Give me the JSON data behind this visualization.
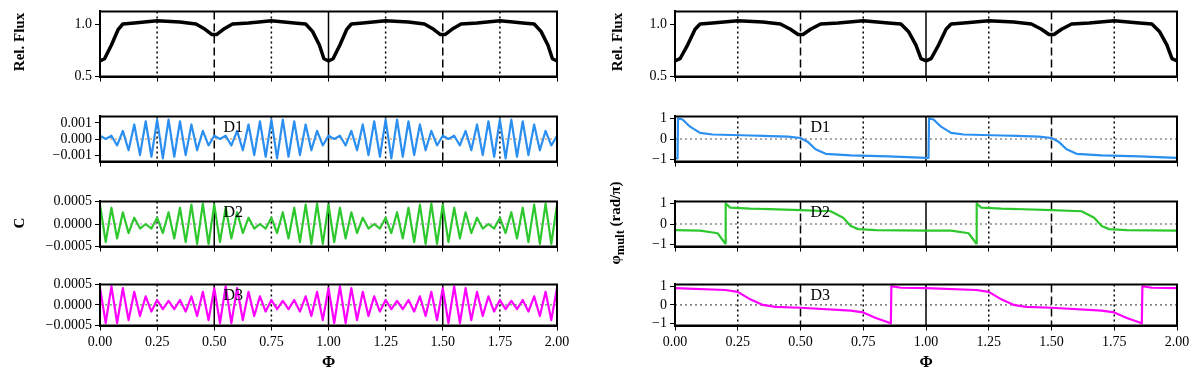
{
  "chart_data": [
    {
      "type": "line",
      "ylabel": "Rel. Flux",
      "xlim": [
        0,
        2
      ],
      "xticks": [
        {
          "value": 0,
          "label": null
        },
        {
          "value": 0.25,
          "label": null
        },
        {
          "value": 0.5,
          "label": null
        },
        {
          "value": 0.75,
          "label": null
        },
        {
          "value": 1,
          "label": null
        },
        {
          "value": 1.25,
          "label": null
        },
        {
          "value": 1.5,
          "label": null
        },
        {
          "value": 1.75,
          "label": null
        },
        {
          "value": 2,
          "label": null
        }
      ],
      "ylim": [
        0.5,
        1.12
      ],
      "yticks": [
        {
          "value": 0.5,
          "label": "0.5"
        },
        {
          "value": 1,
          "label": "1.0"
        }
      ],
      "tick_labels": "y",
      "marker": "none",
      "x": [
        0,
        0.02,
        0.05,
        0.08,
        0.1,
        0.15,
        0.25,
        0.35,
        0.42,
        0.46,
        0.49,
        0.51,
        0.54,
        0.58,
        0.65,
        0.75,
        0.85,
        0.9,
        0.93,
        0.96,
        0.98,
        1,
        1.02,
        1.05,
        1.08,
        1.1,
        1.15,
        1.25,
        1.35,
        1.42,
        1.46,
        1.49,
        1.51,
        1.54,
        1.58,
        1.65,
        1.75,
        1.85,
        1.9,
        1.93,
        1.96,
        1.98,
        2
      ],
      "series": [
        {
          "color": "#000000",
          "values": [
            0.65,
            0.67,
            0.8,
            0.95,
            1.0,
            1.01,
            1.03,
            1.02,
            1.0,
            0.95,
            0.9,
            0.9,
            0.95,
            1.0,
            1.01,
            1.03,
            1.01,
            1.0,
            0.93,
            0.8,
            0.67,
            0.65,
            0.67,
            0.8,
            0.95,
            1.0,
            1.01,
            1.03,
            1.02,
            1.0,
            0.95,
            0.9,
            0.9,
            0.95,
            1.0,
            1.01,
            1.03,
            1.01,
            1.0,
            0.93,
            0.8,
            0.67,
            0.65
          ]
        }
      ],
      "ref_lines": [
        {
          "axis": "x",
          "value": 0.25,
          "line_style": "dotted",
          "color": "#000000"
        },
        {
          "axis": "x",
          "value": 0.5,
          "line_style": "dashed",
          "color": "#000000"
        },
        {
          "axis": "x",
          "value": 0.75,
          "line_style": "dotted",
          "color": "#000000"
        },
        {
          "axis": "x",
          "value": 1,
          "line_style": "solid",
          "color": "#000000"
        },
        {
          "axis": "x",
          "value": 1.25,
          "line_style": "dotted",
          "color": "#000000"
        },
        {
          "axis": "x",
          "value": 1.5,
          "line_style": "dashed",
          "color": "#000000"
        },
        {
          "axis": "x",
          "value": 1.75,
          "line_style": "dotted",
          "color": "#000000"
        }
      ]
    },
    {
      "type": "line",
      "annotations": [
        "D1"
      ],
      "xlim": [
        0,
        2
      ],
      "xticks": [
        {
          "value": 0,
          "label": null
        },
        {
          "value": 0.25,
          "label": null
        },
        {
          "value": 0.5,
          "label": null
        },
        {
          "value": 0.75,
          "label": null
        },
        {
          "value": 1,
          "label": null
        },
        {
          "value": 1.25,
          "label": null
        },
        {
          "value": 1.5,
          "label": null
        },
        {
          "value": 1.75,
          "label": null
        },
        {
          "value": 2,
          "label": null
        }
      ],
      "ylim": [
        -0.0014,
        0.0014
      ],
      "yticks": [
        {
          "value": -0.001,
          "label": "−0.001"
        },
        {
          "value": 0,
          "label": "0.000"
        },
        {
          "value": 0.001,
          "label": "0.001"
        }
      ],
      "tick_labels": "y",
      "marker": "none",
      "x": [
        0,
        0.025,
        0.05,
        0.075,
        0.1,
        0.125,
        0.15,
        0.175,
        0.2,
        0.225,
        0.25,
        0.275,
        0.3,
        0.325,
        0.35,
        0.375,
        0.4,
        0.425,
        0.45,
        0.475,
        0.5,
        0.525,
        0.55,
        0.575,
        0.6,
        0.625,
        0.65,
        0.675,
        0.7,
        0.725,
        0.75,
        0.775,
        0.8,
        0.825,
        0.85,
        0.875,
        0.9,
        0.925,
        0.95,
        0.975,
        1,
        1.025,
        1.05,
        1.075,
        1.1,
        1.125,
        1.15,
        1.175,
        1.2,
        1.225,
        1.25,
        1.275,
        1.3,
        1.325,
        1.35,
        1.375,
        1.4,
        1.425,
        1.45,
        1.475,
        1.5,
        1.525,
        1.55,
        1.575,
        1.6,
        1.625,
        1.65,
        1.675,
        1.7,
        1.725,
        1.75,
        1.775,
        1.8,
        1.825,
        1.85,
        1.875,
        1.9,
        1.925,
        1.95,
        1.975,
        2
      ],
      "series": [
        {
          "color": "#2a8ff0",
          "values": [
            0.0002,
            0,
            0.0002,
            -0.0004,
            0.0005,
            -0.0007,
            0.0009,
            -0.001,
            0.0011,
            -0.0011,
            0.0012,
            -0.0012,
            0.0012,
            -0.0011,
            0.0011,
            -0.001,
            0.0009,
            -0.0007,
            0.0005,
            -0.0004,
            0.0002,
            0,
            0.0002,
            -0.0004,
            0.0005,
            -0.0007,
            0.0009,
            -0.001,
            0.0011,
            -0.0011,
            0.0012,
            -0.0012,
            0.0012,
            -0.0011,
            0.0011,
            -0.001,
            0.0009,
            -0.0007,
            0.0005,
            -0.0004,
            0.0002,
            0,
            0.0002,
            -0.0004,
            0.0005,
            -0.0007,
            0.0009,
            -0.001,
            0.0011,
            -0.0011,
            0.0012,
            -0.0012,
            0.0012,
            -0.0011,
            0.0011,
            -0.001,
            0.0009,
            -0.0007,
            0.0005,
            -0.0004,
            0.0002,
            0,
            0.0002,
            -0.0004,
            0.0005,
            -0.0007,
            0.0009,
            -0.001,
            0.0011,
            -0.0011,
            0.0012,
            -0.0012,
            0.0012,
            -0.0011,
            0.0011,
            -0.001,
            0.0009,
            -0.0007,
            0.0005,
            -0.0004,
            0.0002
          ]
        }
      ],
      "ref_lines": [
        {
          "axis": "y",
          "value": 0,
          "line_style": "dotted",
          "color": "#c8843c"
        },
        {
          "axis": "x",
          "value": 0.25,
          "line_style": "dotted",
          "color": "#000000"
        },
        {
          "axis": "x",
          "value": 0.5,
          "line_style": "dashed",
          "color": "#000000"
        },
        {
          "axis": "x",
          "value": 0.75,
          "line_style": "dotted",
          "color": "#000000"
        },
        {
          "axis": "x",
          "value": 1,
          "line_style": "solid",
          "color": "#000000"
        },
        {
          "axis": "x",
          "value": 1.25,
          "line_style": "dotted",
          "color": "#000000"
        },
        {
          "axis": "x",
          "value": 1.5,
          "line_style": "dashed",
          "color": "#000000"
        },
        {
          "axis": "x",
          "value": 1.75,
          "line_style": "dotted",
          "color": "#000000"
        }
      ]
    },
    {
      "type": "line",
      "ylabel": "C",
      "annotations": [
        "D2"
      ],
      "xlim": [
        0,
        2
      ],
      "xticks": [
        {
          "value": 0,
          "label": null
        },
        {
          "value": 0.25,
          "label": null
        },
        {
          "value": 0.5,
          "label": null
        },
        {
          "value": 0.75,
          "label": null
        },
        {
          "value": 1,
          "label": null
        },
        {
          "value": 1.25,
          "label": null
        },
        {
          "value": 1.5,
          "label": null
        },
        {
          "value": 1.75,
          "label": null
        },
        {
          "value": 2,
          "label": null
        }
      ],
      "ylim": [
        -0.0005,
        0.0005
      ],
      "yticks": [
        {
          "value": -0.0005,
          "label": "−0.0005"
        },
        {
          "value": 0,
          "label": "0.0000"
        },
        {
          "value": 0.0005,
          "label": "0.0005"
        }
      ],
      "tick_labels": "y",
      "marker": "none",
      "x": [
        0,
        0.025,
        0.05,
        0.075,
        0.1,
        0.125,
        0.15,
        0.175,
        0.2,
        0.225,
        0.25,
        0.275,
        0.3,
        0.325,
        0.35,
        0.375,
        0.4,
        0.425,
        0.45,
        0.475,
        0.5,
        0.525,
        0.55,
        0.575,
        0.6,
        0.625,
        0.65,
        0.675,
        0.7,
        0.725,
        0.75,
        0.775,
        0.8,
        0.825,
        0.85,
        0.875,
        0.9,
        0.925,
        0.95,
        0.975,
        1,
        1.025,
        1.05,
        1.075,
        1.1,
        1.125,
        1.15,
        1.175,
        1.2,
        1.225,
        1.25,
        1.275,
        1.3,
        1.325,
        1.35,
        1.375,
        1.4,
        1.425,
        1.45,
        1.475,
        1.5,
        1.525,
        1.55,
        1.575,
        1.6,
        1.625,
        1.65,
        1.675,
        1.7,
        1.725,
        1.75,
        1.775,
        1.8,
        1.825,
        1.85,
        1.875,
        1.9,
        1.925,
        1.95,
        1.975,
        2
      ],
      "series": [
        {
          "color": "#2ec82e",
          "values": [
            0.00043,
            -0.0004,
            0.00036,
            -0.00032,
            0.00026,
            -0.0002,
            0.00014,
            -0.0001,
            0,
            -0.0001,
            0.00014,
            -0.0002,
            0.00026,
            -0.00032,
            0.00036,
            -0.0004,
            0.00043,
            -0.00044,
            0.00045,
            -0.00044,
            0.00043,
            -0.0004,
            0.00036,
            -0.00032,
            0.00026,
            -0.0002,
            0.00014,
            -0.0001,
            0,
            -0.0001,
            0.00014,
            -0.0002,
            0.00026,
            -0.00032,
            0.00036,
            -0.0004,
            0.00043,
            -0.00044,
            0.00045,
            -0.00044,
            0.00043,
            -0.0004,
            0.00036,
            -0.00032,
            0.00026,
            -0.0002,
            0.00014,
            -0.0001,
            0,
            -0.0001,
            0.00014,
            -0.0002,
            0.00026,
            -0.00032,
            0.00036,
            -0.0004,
            0.00043,
            -0.00044,
            0.00045,
            -0.00044,
            0.00043,
            -0.0004,
            0.00036,
            -0.00032,
            0.00026,
            -0.0002,
            0.00014,
            -0.0001,
            0,
            -0.0001,
            0.00014,
            -0.0002,
            0.00026,
            -0.00032,
            0.00036,
            -0.0004,
            0.00043,
            -0.00044,
            0.00045,
            -0.00044,
            0.00043
          ]
        }
      ],
      "ref_lines": [
        {
          "axis": "y",
          "value": 0,
          "line_style": "dotted",
          "color": "#b070c0"
        },
        {
          "axis": "x",
          "value": 0.25,
          "line_style": "dotted",
          "color": "#000000"
        },
        {
          "axis": "x",
          "value": 0.5,
          "line_style": "solid",
          "color": "#000000"
        },
        {
          "axis": "x",
          "value": 0.75,
          "line_style": "dotted",
          "color": "#000000"
        },
        {
          "axis": "x",
          "value": 1,
          "line_style": "solid",
          "color": "#000000"
        },
        {
          "axis": "x",
          "value": 1.25,
          "line_style": "dotted",
          "color": "#000000"
        },
        {
          "axis": "x",
          "value": 1.5,
          "line_style": "solid",
          "color": "#000000"
        },
        {
          "axis": "x",
          "value": 1.75,
          "line_style": "dotted",
          "color": "#000000"
        }
      ]
    },
    {
      "type": "line",
      "xlabel": "Φ",
      "annotations": [
        "D3"
      ],
      "xlim": [
        0,
        2
      ],
      "xticks": [
        {
          "value": 0,
          "label": "0.00"
        },
        {
          "value": 0.25,
          "label": "0.25"
        },
        {
          "value": 0.5,
          "label": "0.50"
        },
        {
          "value": 0.75,
          "label": "0.75"
        },
        {
          "value": 1,
          "label": "1.00"
        },
        {
          "value": 1.25,
          "label": "1.25"
        },
        {
          "value": 1.5,
          "label": "1.50"
        },
        {
          "value": 1.75,
          "label": "1.75"
        },
        {
          "value": 2,
          "label": "2.00"
        }
      ],
      "ylim": [
        -0.0005,
        0.0005
      ],
      "yticks": [
        {
          "value": -0.0005,
          "label": "−0.0005"
        },
        {
          "value": 0,
          "label": "0.0000"
        },
        {
          "value": 0.0005,
          "label": "0.0005"
        }
      ],
      "marker": "none",
      "x": [
        0,
        0.025,
        0.05,
        0.075,
        0.1,
        0.125,
        0.15,
        0.175,
        0.2,
        0.225,
        0.25,
        0.275,
        0.3,
        0.325,
        0.35,
        0.375,
        0.4,
        0.425,
        0.45,
        0.475,
        0.5,
        0.525,
        0.55,
        0.575,
        0.6,
        0.625,
        0.65,
        0.675,
        0.7,
        0.725,
        0.75,
        0.775,
        0.8,
        0.825,
        0.85,
        0.875,
        0.9,
        0.925,
        0.95,
        0.975,
        1,
        1.025,
        1.05,
        1.075,
        1.1,
        1.125,
        1.15,
        1.175,
        1.2,
        1.225,
        1.25,
        1.275,
        1.3,
        1.325,
        1.35,
        1.375,
        1.4,
        1.425,
        1.45,
        1.475,
        1.5,
        1.525,
        1.55,
        1.575,
        1.6,
        1.625,
        1.65,
        1.675,
        1.7,
        1.725,
        1.75,
        1.775,
        1.8,
        1.825,
        1.85,
        1.875,
        1.9,
        1.925,
        1.95,
        1.975,
        2
      ],
      "series": [
        {
          "color": "#ff00ff",
          "values": [
            0.00041,
            -0.00044,
            0.00045,
            -0.00044,
            0.00041,
            -0.00037,
            0.00032,
            -0.00027,
            0.00021,
            -0.00016,
            0.00012,
            -0.0001,
            0.0001,
            -0.0001,
            0.00012,
            -0.00016,
            0.00021,
            -0.00027,
            0.00032,
            -0.00037,
            0.00041,
            -0.00044,
            0.00045,
            -0.00044,
            0.00041,
            -0.00037,
            0.00032,
            -0.00027,
            0.00021,
            -0.00016,
            0.00012,
            -0.0001,
            0.0001,
            -0.0001,
            0.00012,
            -0.00016,
            0.00021,
            -0.00027,
            0.00032,
            -0.00037,
            0.00041,
            -0.00044,
            0.00045,
            -0.00044,
            0.00041,
            -0.00037,
            0.00032,
            -0.00027,
            0.00021,
            -0.00016,
            0.00012,
            -0.0001,
            0.0001,
            -0.0001,
            0.00012,
            -0.00016,
            0.00021,
            -0.00027,
            0.00032,
            -0.00037,
            0.00041,
            -0.00044,
            0.00045,
            -0.00044,
            0.00041,
            -0.00037,
            0.00032,
            -0.00027,
            0.00021,
            -0.00016,
            0.00012,
            -0.0001,
            0.0001,
            -0.0001,
            0.00012,
            -0.00016,
            0.00021,
            -0.00027,
            0.00032,
            -0.00037,
            0.00041
          ]
        }
      ],
      "ref_lines": [
        {
          "axis": "y",
          "value": 0,
          "line_style": "dotted",
          "color": "#5aa05a"
        },
        {
          "axis": "x",
          "value": 0.25,
          "line_style": "dotted",
          "color": "#000000"
        },
        {
          "axis": "x",
          "value": 0.5,
          "line_style": "solid",
          "color": "#000000"
        },
        {
          "axis": "x",
          "value": 0.75,
          "line_style": "dotted",
          "color": "#000000"
        },
        {
          "axis": "x",
          "value": 1,
          "line_style": "solid",
          "color": "#000000"
        },
        {
          "axis": "x",
          "value": 1.25,
          "line_style": "dotted",
          "color": "#000000"
        },
        {
          "axis": "x",
          "value": 1.5,
          "line_style": "solid",
          "color": "#000000"
        },
        {
          "axis": "x",
          "value": 1.75,
          "line_style": "dotted",
          "color": "#000000"
        }
      ]
    },
    {
      "type": "line",
      "ylabel": "Rel. Flux",
      "xlim": [
        0,
        2
      ],
      "xticks": [
        {
          "value": 0,
          "label": null
        },
        {
          "value": 0.25,
          "label": null
        },
        {
          "value": 0.5,
          "label": null
        },
        {
          "value": 0.75,
          "label": null
        },
        {
          "value": 1,
          "label": null
        },
        {
          "value": 1.25,
          "label": null
        },
        {
          "value": 1.5,
          "label": null
        },
        {
          "value": 1.75,
          "label": null
        },
        {
          "value": 2,
          "label": null
        }
      ],
      "ylim": [
        0.5,
        1.12
      ],
      "yticks": [
        {
          "value": 0.5,
          "label": "0.5"
        },
        {
          "value": 1,
          "label": "1.0"
        }
      ],
      "tick_labels": "y",
      "marker": "none",
      "x": [
        0,
        0.02,
        0.05,
        0.08,
        0.1,
        0.15,
        0.25,
        0.35,
        0.42,
        0.46,
        0.49,
        0.51,
        0.54,
        0.58,
        0.65,
        0.75,
        0.85,
        0.9,
        0.93,
        0.96,
        0.98,
        1,
        1.02,
        1.05,
        1.08,
        1.1,
        1.15,
        1.25,
        1.35,
        1.42,
        1.46,
        1.49,
        1.51,
        1.54,
        1.58,
        1.65,
        1.75,
        1.85,
        1.9,
        1.93,
        1.96,
        1.98,
        2
      ],
      "series": [
        {
          "color": "#000000",
          "values": [
            0.65,
            0.67,
            0.8,
            0.95,
            1.0,
            1.01,
            1.03,
            1.02,
            1.0,
            0.95,
            0.9,
            0.9,
            0.95,
            1.0,
            1.01,
            1.03,
            1.01,
            1.0,
            0.93,
            0.8,
            0.67,
            0.65,
            0.67,
            0.8,
            0.95,
            1.0,
            1.01,
            1.03,
            1.02,
            1.0,
            0.95,
            0.9,
            0.9,
            0.95,
            1.0,
            1.01,
            1.03,
            1.01,
            1.0,
            0.93,
            0.8,
            0.67,
            0.65
          ]
        }
      ],
      "ref_lines": [
        {
          "axis": "x",
          "value": 0.25,
          "line_style": "dotted",
          "color": "#000000"
        },
        {
          "axis": "x",
          "value": 0.5,
          "line_style": "dashed",
          "color": "#000000"
        },
        {
          "axis": "x",
          "value": 0.75,
          "line_style": "dotted",
          "color": "#000000"
        },
        {
          "axis": "x",
          "value": 1,
          "line_style": "solid",
          "color": "#000000"
        },
        {
          "axis": "x",
          "value": 1.25,
          "line_style": "dotted",
          "color": "#000000"
        },
        {
          "axis": "x",
          "value": 1.5,
          "line_style": "dashed",
          "color": "#000000"
        },
        {
          "axis": "x",
          "value": 1.75,
          "line_style": "dotted",
          "color": "#000000"
        }
      ]
    },
    {
      "type": "line",
      "annotations": [
        "D1"
      ],
      "xlim": [
        0,
        2
      ],
      "xticks": [
        {
          "value": 0,
          "label": null
        },
        {
          "value": 0.25,
          "label": null
        },
        {
          "value": 0.5,
          "label": null
        },
        {
          "value": 0.75,
          "label": null
        },
        {
          "value": 1,
          "label": null
        },
        {
          "value": 1.25,
          "label": null
        },
        {
          "value": 1.5,
          "label": null
        },
        {
          "value": 1.75,
          "label": null
        },
        {
          "value": 2,
          "label": null
        }
      ],
      "ylim": [
        -1.1,
        1.1
      ],
      "yticks": [
        {
          "value": -1,
          "label": "−1"
        },
        {
          "value": 0,
          "label": "0"
        },
        {
          "value": 1,
          "label": "1"
        }
      ],
      "tick_labels": "y",
      "marker": "none",
      "series": [
        {
          "color": "#2a8ff0",
          "x": [
            0,
            0.01,
            0.012,
            0.03,
            0.06,
            0.1,
            0.15,
            0.3,
            0.45,
            0.5,
            0.53,
            0.56,
            0.6,
            0.7,
            0.85,
            1,
            1.01,
            1.012,
            1.03,
            1.06,
            1.1,
            1.15,
            1.3,
            1.45,
            1.5,
            1.53,
            1.56,
            1.6,
            1.7,
            1.85,
            2
          ],
          "values": [
            -0.95,
            -0.95,
            1,
            0.95,
            0.6,
            0.3,
            0.22,
            0.17,
            0.12,
            0.05,
            -0.15,
            -0.5,
            -0.72,
            -0.8,
            -0.85,
            -0.92,
            -0.92,
            1,
            0.95,
            0.6,
            0.3,
            0.22,
            0.17,
            0.12,
            0.05,
            -0.15,
            -0.5,
            -0.72,
            -0.8,
            -0.85,
            -0.92
          ]
        }
      ],
      "ref_lines": [
        {
          "axis": "y",
          "value": 0,
          "line_style": "dotted",
          "color": "#555555"
        },
        {
          "axis": "x",
          "value": 0.25,
          "line_style": "dotted",
          "color": "#000000"
        },
        {
          "axis": "x",
          "value": 0.5,
          "line_style": "dashed",
          "color": "#000000"
        },
        {
          "axis": "x",
          "value": 0.75,
          "line_style": "dotted",
          "color": "#000000"
        },
        {
          "axis": "x",
          "value": 1,
          "line_style": "solid",
          "color": "#000000"
        },
        {
          "axis": "x",
          "value": 1.25,
          "line_style": "dotted",
          "color": "#000000"
        },
        {
          "axis": "x",
          "value": 1.5,
          "line_style": "dashed",
          "color": "#000000"
        },
        {
          "axis": "x",
          "value": 1.75,
          "line_style": "dotted",
          "color": "#000000"
        }
      ]
    },
    {
      "type": "line",
      "ylabel": "φ$_{mult}$ (rad/π)",
      "annotations": [
        "D2"
      ],
      "xlim": [
        0,
        2
      ],
      "xticks": [
        {
          "value": 0,
          "label": null
        },
        {
          "value": 0.25,
          "label": null
        },
        {
          "value": 0.5,
          "label": null
        },
        {
          "value": 0.75,
          "label": null
        },
        {
          "value": 1,
          "label": null
        },
        {
          "value": 1.25,
          "label": null
        },
        {
          "value": 1.5,
          "label": null
        },
        {
          "value": 1.75,
          "label": null
        },
        {
          "value": 2,
          "label": null
        }
      ],
      "ylim": [
        -1.1,
        1.1
      ],
      "yticks": [
        {
          "value": -1,
          "label": "−1"
        },
        {
          "value": 0,
          "label": "0"
        },
        {
          "value": 1,
          "label": "1"
        }
      ],
      "tick_labels": "y",
      "marker": "none",
      "series": [
        {
          "color": "#2ec82e",
          "x": [
            0,
            0.1,
            0.17,
            0.2,
            0.202,
            0.22,
            0.3,
            0.5,
            0.62,
            0.67,
            0.7,
            0.73,
            0.8,
            1,
            1.1,
            1.17,
            1.2,
            1.202,
            1.22,
            1.3,
            1.5,
            1.62,
            1.67,
            1.7,
            1.73,
            1.8,
            2
          ],
          "values": [
            -0.3,
            -0.32,
            -0.45,
            -0.95,
            1,
            0.8,
            0.75,
            0.68,
            0.62,
            0.3,
            -0.1,
            -0.25,
            -0.3,
            -0.32,
            -0.32,
            -0.45,
            -0.95,
            1,
            0.8,
            0.75,
            0.68,
            0.62,
            0.3,
            -0.1,
            -0.25,
            -0.3,
            -0.32
          ]
        }
      ],
      "ref_lines": [
        {
          "axis": "y",
          "value": 0,
          "line_style": "dotted",
          "color": "#555555"
        },
        {
          "axis": "x",
          "value": 0.25,
          "line_style": "dotted",
          "color": "#000000"
        },
        {
          "axis": "x",
          "value": 0.5,
          "line_style": "dashed",
          "color": "#000000"
        },
        {
          "axis": "x",
          "value": 0.75,
          "line_style": "dotted",
          "color": "#000000"
        },
        {
          "axis": "x",
          "value": 1,
          "line_style": "solid",
          "color": "#000000"
        },
        {
          "axis": "x",
          "value": 1.25,
          "line_style": "dotted",
          "color": "#000000"
        },
        {
          "axis": "x",
          "value": 1.5,
          "line_style": "dashed",
          "color": "#000000"
        },
        {
          "axis": "x",
          "value": 1.75,
          "line_style": "dotted",
          "color": "#000000"
        }
      ]
    },
    {
      "type": "line",
      "xlabel": "Φ",
      "annotations": [
        "D3"
      ],
      "xlim": [
        0,
        2
      ],
      "xticks": [
        {
          "value": 0,
          "label": "0.00"
        },
        {
          "value": 0.25,
          "label": "0.25"
        },
        {
          "value": 0.5,
          "label": "0.50"
        },
        {
          "value": 0.75,
          "label": "0.75"
        },
        {
          "value": 1,
          "label": "1.00"
        },
        {
          "value": 1.25,
          "label": "1.25"
        },
        {
          "value": 1.5,
          "label": "1.50"
        },
        {
          "value": 1.75,
          "label": "1.75"
        },
        {
          "value": 2,
          "label": "2.00"
        }
      ],
      "ylim": [
        -1.1,
        1.1
      ],
      "yticks": [
        {
          "value": -1,
          "label": "−1"
        },
        {
          "value": 0,
          "label": "0"
        },
        {
          "value": 1,
          "label": "1"
        }
      ],
      "marker": "none",
      "series": [
        {
          "color": "#ff00ff",
          "x": [
            0,
            0.2,
            0.25,
            0.3,
            0.35,
            0.4,
            0.5,
            0.7,
            0.75,
            0.8,
            0.86,
            0.862,
            0.9,
            1,
            1.2,
            1.25,
            1.3,
            1.35,
            1.4,
            1.5,
            1.7,
            1.75,
            1.8,
            1.86,
            1.862,
            1.9,
            2
          ],
          "values": [
            0.9,
            0.8,
            0.7,
            0.3,
            0,
            -0.1,
            -0.15,
            -0.3,
            -0.4,
            -0.7,
            -0.98,
            1,
            0.92,
            0.9,
            0.8,
            0.7,
            0.3,
            0,
            -0.1,
            -0.15,
            -0.3,
            -0.4,
            -0.7,
            -0.98,
            1,
            0.92,
            0.9
          ]
        }
      ],
      "ref_lines": [
        {
          "axis": "y",
          "value": 0,
          "line_style": "dotted",
          "color": "#555555"
        },
        {
          "axis": "x",
          "value": 0.25,
          "line_style": "dotted",
          "color": "#000000"
        },
        {
          "axis": "x",
          "value": 0.5,
          "line_style": "dashed",
          "color": "#000000"
        },
        {
          "axis": "x",
          "value": 0.75,
          "line_style": "dotted",
          "color": "#000000"
        },
        {
          "axis": "x",
          "value": 1,
          "line_style": "solid",
          "color": "#000000"
        },
        {
          "axis": "x",
          "value": 1.25,
          "line_style": "dotted",
          "color": "#000000"
        },
        {
          "axis": "x",
          "value": 1.5,
          "line_style": "dashed",
          "color": "#000000"
        },
        {
          "axis": "x",
          "value": 1.75,
          "line_style": "dotted",
          "color": "#000000"
        }
      ]
    }
  ]
}
